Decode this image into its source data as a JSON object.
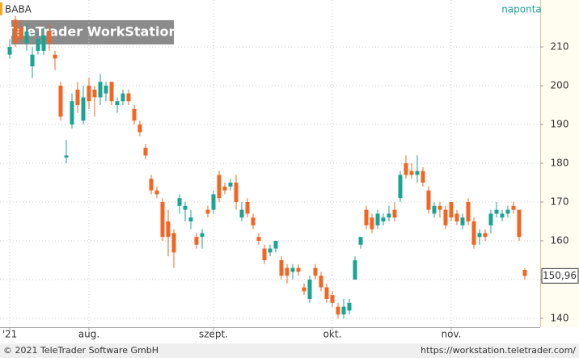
{
  "chart_data": {
    "type": "candlestick",
    "symbol": "BABA",
    "interval": "naponta",
    "watermark": "TeleTrader WorkStation",
    "footer_left": "© 2021 TeleTrader Software GmbH",
    "footer_right": "https://workstation.teletrader.com/",
    "last_close_label": "150,96",
    "up_color": "#1ba394",
    "down_color": "#f26522",
    "grid": true,
    "ylim": [
      137.7,
      222.1
    ],
    "yticks": [
      140,
      150,
      160,
      170,
      180,
      190,
      200,
      210
    ],
    "categories": [
      "'21",
      null,
      null,
      null,
      null,
      null,
      null,
      null,
      null,
      null,
      null,
      null,
      null,
      null,
      "aug.",
      null,
      null,
      null,
      null,
      null,
      null,
      null,
      null,
      null,
      null,
      null,
      null,
      null,
      null,
      null,
      null,
      null,
      null,
      null,
      null,
      null,
      "szept.",
      null,
      null,
      null,
      null,
      null,
      null,
      null,
      null,
      null,
      null,
      null,
      null,
      null,
      null,
      null,
      null,
      null,
      null,
      null,
      null,
      "okt.",
      null,
      null,
      null,
      null,
      null,
      null,
      null,
      null,
      null,
      null,
      null,
      null,
      null,
      null,
      null,
      null,
      null,
      null,
      null,
      null,
      "nov.",
      null,
      null,
      null,
      null,
      null,
      null,
      null,
      null,
      null,
      null,
      null,
      null,
      null
    ],
    "open": [
      208,
      217,
      215,
      211,
      205,
      209,
      209,
      214,
      208,
      200,
      181.5,
      190,
      199,
      191,
      200,
      199,
      197,
      198,
      201,
      195,
      196,
      198,
      194,
      190,
      184,
      176,
      173,
      170,
      165,
      162,
      169,
      168,
      165,
      161,
      161,
      168,
      168,
      177,
      174,
      174,
      175,
      166,
      170,
      166,
      161,
      158,
      157,
      158,
      155,
      153,
      152,
      153,
      148,
      145,
      153,
      151,
      148,
      146,
      143,
      141,
      142,
      150,
      159,
      168,
      166,
      164,
      165,
      166,
      168,
      171,
      180,
      178,
      177,
      178,
      173,
      167,
      169,
      168,
      170,
      167,
      164,
      170,
      165,
      161,
      162,
      164,
      167,
      166,
      167,
      169,
      168,
      152.5
    ],
    "high": [
      212,
      218,
      217,
      216,
      210,
      214,
      215,
      216,
      209,
      201,
      186,
      198,
      201,
      200,
      202,
      200,
      203,
      201,
      201,
      197,
      199,
      199,
      195,
      191,
      185,
      177,
      174,
      171,
      168,
      163,
      172,
      170,
      168,
      162,
      163,
      169,
      173,
      178,
      175,
      176,
      177,
      170,
      171,
      167,
      162,
      159,
      159,
      160,
      156,
      154,
      154,
      154,
      149,
      151,
      154,
      152,
      149,
      147,
      144,
      145,
      145,
      156,
      161,
      169,
      167,
      168,
      167,
      169,
      170,
      178,
      182,
      180,
      182,
      179,
      174,
      170,
      170,
      169,
      170,
      168,
      167,
      171,
      166,
      163,
      163,
      168,
      170,
      168,
      169,
      170,
      168,
      153
    ],
    "low": [
      207,
      210,
      211,
      209,
      202,
      208,
      208,
      209,
      204,
      191,
      180,
      189,
      193,
      190,
      194,
      192,
      195,
      196,
      195,
      193,
      195,
      195,
      190,
      187,
      181,
      172,
      171,
      160,
      156,
      153,
      167,
      165,
      163,
      158,
      158,
      166,
      167,
      170,
      172,
      173,
      168,
      165,
      166,
      163,
      159,
      154,
      156,
      157,
      150,
      149,
      150,
      151,
      146,
      144,
      150,
      147,
      144,
      143,
      140,
      140,
      141,
      150,
      158,
      163,
      162,
      163,
      164,
      165,
      165,
      170,
      176,
      176,
      175,
      174,
      167,
      166,
      166,
      163,
      165,
      164,
      163,
      164,
      158,
      159,
      160,
      162,
      166,
      165,
      166,
      167,
      160,
      150
    ],
    "close": [
      210,
      211,
      212,
      214,
      208,
      212,
      213,
      211,
      207,
      192,
      182,
      196,
      195,
      197,
      196,
      197,
      201,
      200,
      196,
      196,
      198,
      196,
      191,
      188,
      182,
      173,
      172,
      161,
      161,
      157,
      171,
      169,
      166,
      159,
      162,
      167,
      172,
      171,
      173,
      175,
      170,
      168,
      167,
      164,
      160,
      155,
      158,
      160,
      151,
      151,
      153,
      152,
      147,
      150,
      151,
      148,
      145,
      144,
      141,
      143,
      144,
      155,
      161,
      164,
      163,
      167,
      166,
      167,
      166,
      177,
      177,
      177,
      178,
      175,
      168,
      169,
      168,
      164,
      166,
      165,
      166,
      165,
      159,
      162,
      161,
      167,
      168,
      167,
      168,
      168,
      161,
      150.96
    ]
  }
}
